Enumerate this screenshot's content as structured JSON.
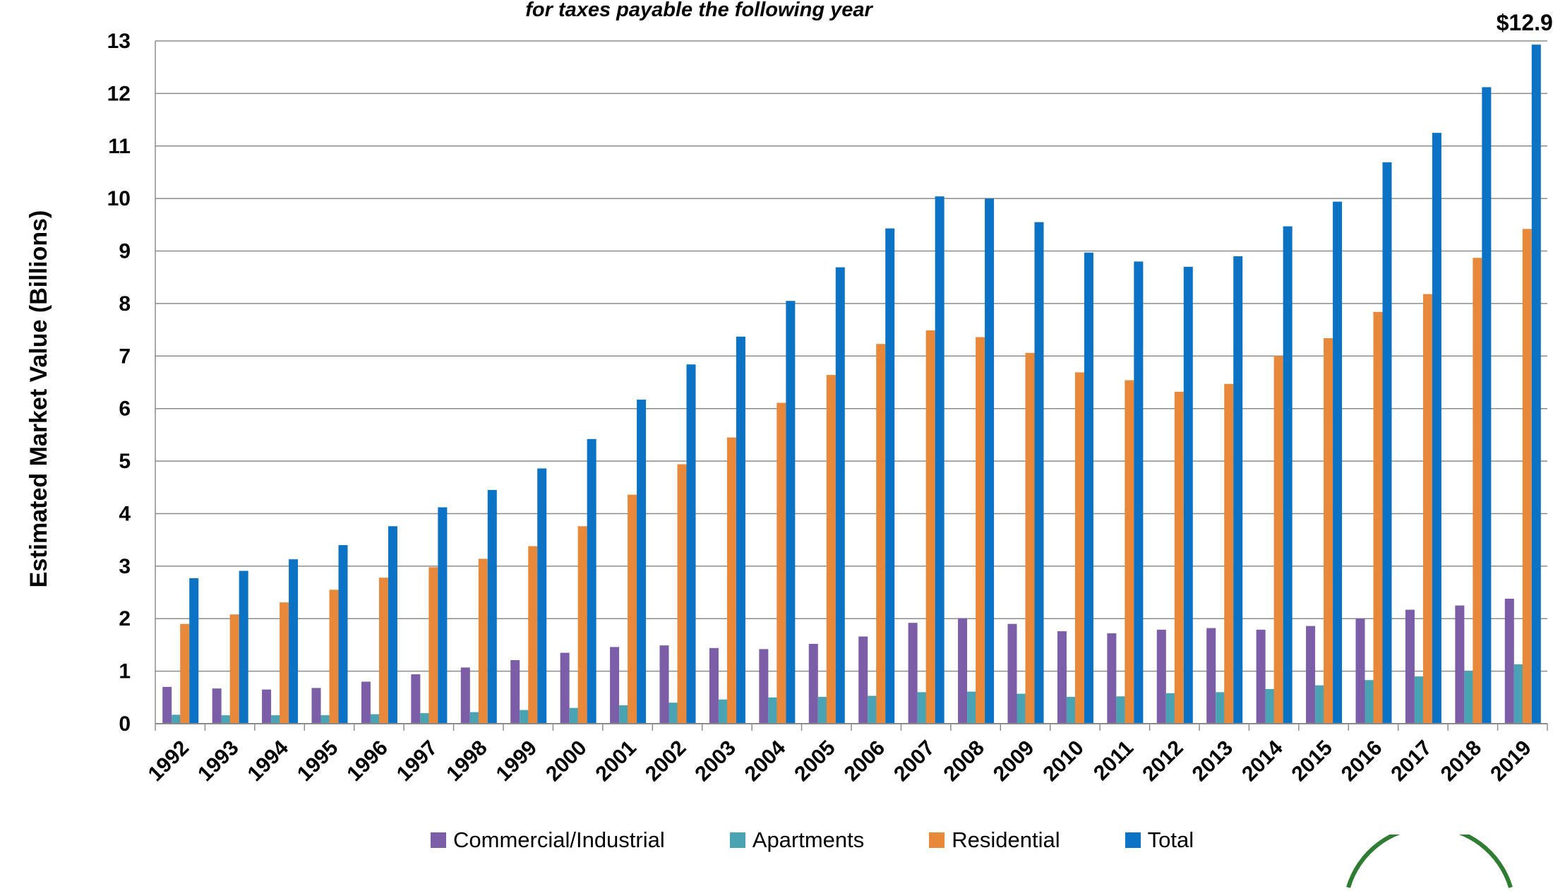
{
  "chart_data": {
    "type": "bar",
    "subtitle": "for taxes payable the following year",
    "ylabel": "Estimated Market Value (Billions)",
    "xlabel": "",
    "ylim": [
      0,
      13
    ],
    "yticks": [
      0,
      1,
      2,
      3,
      4,
      5,
      6,
      7,
      8,
      9,
      10,
      11,
      12,
      13
    ],
    "grid": true,
    "legend_position": "bottom",
    "categories": [
      "1992",
      "1993",
      "1994",
      "1995",
      "1996",
      "1997",
      "1998",
      "1999",
      "2000",
      "2001",
      "2002",
      "2003",
      "2004",
      "2005",
      "2006",
      "2007",
      "2008",
      "2009",
      "2010",
      "2011",
      "2012",
      "2013",
      "2014",
      "2015",
      "2016",
      "2017",
      "2018",
      "2019"
    ],
    "series": [
      {
        "name": "Commercial/Industrial",
        "color": "#7b5ea7",
        "values": [
          0.7,
          0.67,
          0.65,
          0.68,
          0.8,
          0.94,
          1.07,
          1.21,
          1.35,
          1.46,
          1.49,
          1.44,
          1.42,
          1.52,
          1.66,
          1.92,
          2.01,
          1.9,
          1.76,
          1.72,
          1.79,
          1.82,
          1.79,
          1.86,
          2.0,
          2.17,
          2.25,
          2.38
        ]
      },
      {
        "name": "Apartments",
        "color": "#4aa3b3",
        "values": [
          0.17,
          0.16,
          0.16,
          0.16,
          0.18,
          0.2,
          0.22,
          0.26,
          0.3,
          0.35,
          0.4,
          0.46,
          0.5,
          0.51,
          0.53,
          0.6,
          0.61,
          0.57,
          0.51,
          0.52,
          0.58,
          0.6,
          0.66,
          0.73,
          0.83,
          0.9,
          1.0,
          1.13
        ]
      },
      {
        "name": "Residential",
        "color": "#e8883a",
        "values": [
          1.9,
          2.08,
          2.31,
          2.55,
          2.78,
          2.98,
          3.14,
          3.38,
          3.76,
          4.36,
          4.94,
          5.45,
          6.11,
          6.64,
          7.23,
          7.49,
          7.36,
          7.06,
          6.69,
          6.54,
          6.32,
          6.47,
          7.0,
          7.34,
          7.84,
          8.18,
          8.87,
          9.42
        ]
      },
      {
        "name": "Total",
        "color": "#0b72c4",
        "values": [
          2.77,
          2.91,
          3.13,
          3.4,
          3.76,
          4.12,
          4.45,
          4.86,
          5.42,
          6.17,
          6.84,
          7.37,
          8.05,
          8.69,
          9.43,
          10.04,
          10.0,
          9.55,
          8.97,
          8.8,
          8.7,
          8.9,
          9.47,
          9.94,
          10.69,
          11.25,
          12.12,
          12.93
        ]
      }
    ],
    "annotations": [
      {
        "text": "$12.9",
        "category": "2019",
        "series": "Total"
      }
    ]
  }
}
